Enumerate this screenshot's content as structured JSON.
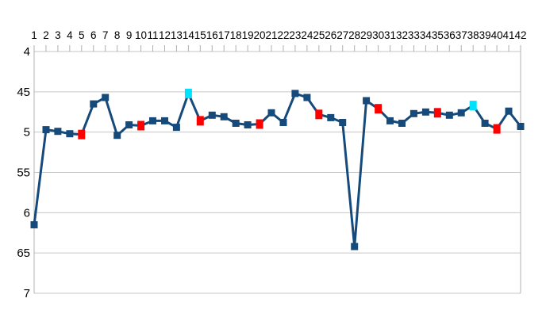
{
  "chart": {
    "title": "",
    "background": "#ffffff",
    "colors": {
      "line": "#154a7a",
      "marker_default": "#154a7a",
      "marker_red": "#ff0000",
      "marker_cyan": "#00e0ff",
      "gridline": "#c6c6c6",
      "axis_line": "#b0b0b0",
      "label_color": "#000000"
    },
    "x_axis": {
      "position": "top",
      "labels": [
        "1",
        "2",
        "3",
        "4",
        "5",
        "6",
        "7",
        "8",
        "9",
        "10",
        "11",
        "12",
        "13",
        "14",
        "15",
        "16",
        "17",
        "18",
        "19",
        "20",
        "21",
        "22",
        "23",
        "24",
        "25",
        "26",
        "27",
        "28",
        "29",
        "30",
        "31",
        "32",
        "33",
        "34",
        "35",
        "36",
        "37",
        "38",
        "39",
        "40",
        "41",
        "42"
      ]
    },
    "y_axis": {
      "labels": [
        "4",
        "45",
        "5",
        "55",
        "6",
        "65",
        "7"
      ],
      "values": [
        4,
        4.5,
        5,
        5.5,
        6,
        6.5,
        7
      ],
      "reversed": true
    }
  },
  "chart_data": {
    "type": "line",
    "title": "",
    "xlabel": "",
    "ylabel": "",
    "x": [
      1,
      2,
      3,
      4,
      5,
      6,
      7,
      8,
      9,
      10,
      11,
      12,
      13,
      14,
      15,
      16,
      17,
      18,
      19,
      20,
      21,
      22,
      23,
      24,
      25,
      26,
      27,
      28,
      29,
      30,
      31,
      32,
      33,
      34,
      35,
      36,
      37,
      38,
      39,
      40,
      41,
      42
    ],
    "values": [
      6.15,
      4.97,
      4.99,
      5.02,
      5.03,
      4.65,
      4.57,
      5.04,
      4.91,
      4.92,
      4.86,
      4.86,
      4.94,
      4.52,
      4.86,
      4.79,
      4.81,
      4.89,
      4.91,
      4.9,
      4.76,
      4.88,
      4.52,
      4.57,
      4.78,
      4.82,
      4.88,
      6.42,
      4.61,
      4.71,
      4.86,
      4.89,
      4.77,
      4.75,
      4.76,
      4.79,
      4.76,
      4.67,
      4.89,
      4.96,
      4.74,
      4.93
    ],
    "red_points": [
      5,
      10,
      15,
      20,
      25,
      30,
      35,
      40
    ],
    "cyan_points": [
      14,
      38
    ],
    "ylim": [
      4,
      7
    ],
    "y_axis_reversed": true,
    "x_axis_position": "top",
    "grid": true,
    "legend": false
  }
}
